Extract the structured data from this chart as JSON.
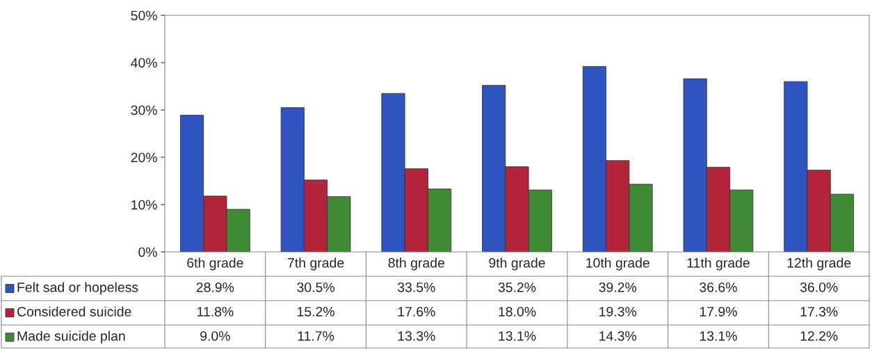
{
  "chart_data": {
    "type": "bar",
    "categories": [
      "6th grade",
      "7th grade",
      "8th grade",
      "9th grade",
      "10th grade",
      "11th grade",
      "12th grade"
    ],
    "series": [
      {
        "name": "Felt sad or hopeless",
        "color": "#2f54c0",
        "values": [
          28.9,
          30.5,
          33.5,
          35.2,
          39.2,
          36.6,
          36.0
        ],
        "value_labels": [
          "28.9%",
          "30.5%",
          "33.5%",
          "35.2%",
          "39.2%",
          "36.6%",
          "36.0%"
        ]
      },
      {
        "name": "Considered suicide",
        "color": "#b3233a",
        "values": [
          11.8,
          15.2,
          17.6,
          18.0,
          19.3,
          17.9,
          17.3
        ],
        "value_labels": [
          "11.8%",
          "15.2%",
          "17.6%",
          "18.0%",
          "19.3%",
          "17.9%",
          "17.3%"
        ]
      },
      {
        "name": "Made suicide plan",
        "color": "#3f8a35",
        "values": [
          9.0,
          11.7,
          13.3,
          13.1,
          14.3,
          13.1,
          12.2
        ],
        "value_labels": [
          "9.0%",
          "11.7%",
          "13.3%",
          "13.1%",
          "14.3%",
          "13.1%",
          "12.2%"
        ]
      }
    ],
    "ylim": [
      0,
      50
    ],
    "yticks": [
      {
        "value": 0,
        "label": "0%"
      },
      {
        "value": 10,
        "label": "10%"
      },
      {
        "value": 20,
        "label": "20%"
      },
      {
        "value": 30,
        "label": "30%"
      },
      {
        "value": 40,
        "label": "40%"
      },
      {
        "value": 50,
        "label": "50%"
      }
    ],
    "grid": false,
    "legend": "bottom"
  }
}
